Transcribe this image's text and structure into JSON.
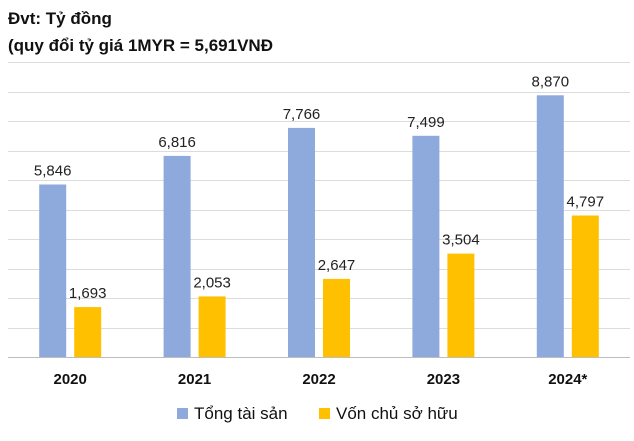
{
  "chart_data": {
    "type": "bar",
    "title_lines": [
      "Đvt: Tỷ đồng",
      "(quy đổi tỷ giá 1MYR = 5,691VNĐ"
    ],
    "categories": [
      "2020",
      "2021",
      "2022",
      "2023",
      "2024*"
    ],
    "series": [
      {
        "name": "Tổng tài sản",
        "values": [
          5846,
          6816,
          7766,
          7499,
          8870
        ],
        "labels": [
          "5,846",
          "6,816",
          "7,766",
          "7,499",
          "8,870"
        ],
        "color": "#8EA9DB"
      },
      {
        "name": "Vốn chủ sở hữu",
        "values": [
          1693,
          2053,
          2647,
          3504,
          4797
        ],
        "labels": [
          "1,693",
          "2,053",
          "2,647",
          "3,504",
          "4,797"
        ],
        "color": "#FFC000"
      }
    ],
    "ylim": [
      0,
      10000
    ],
    "grid": true,
    "legend_position": "bottom",
    "xlabel": "",
    "ylabel": ""
  }
}
